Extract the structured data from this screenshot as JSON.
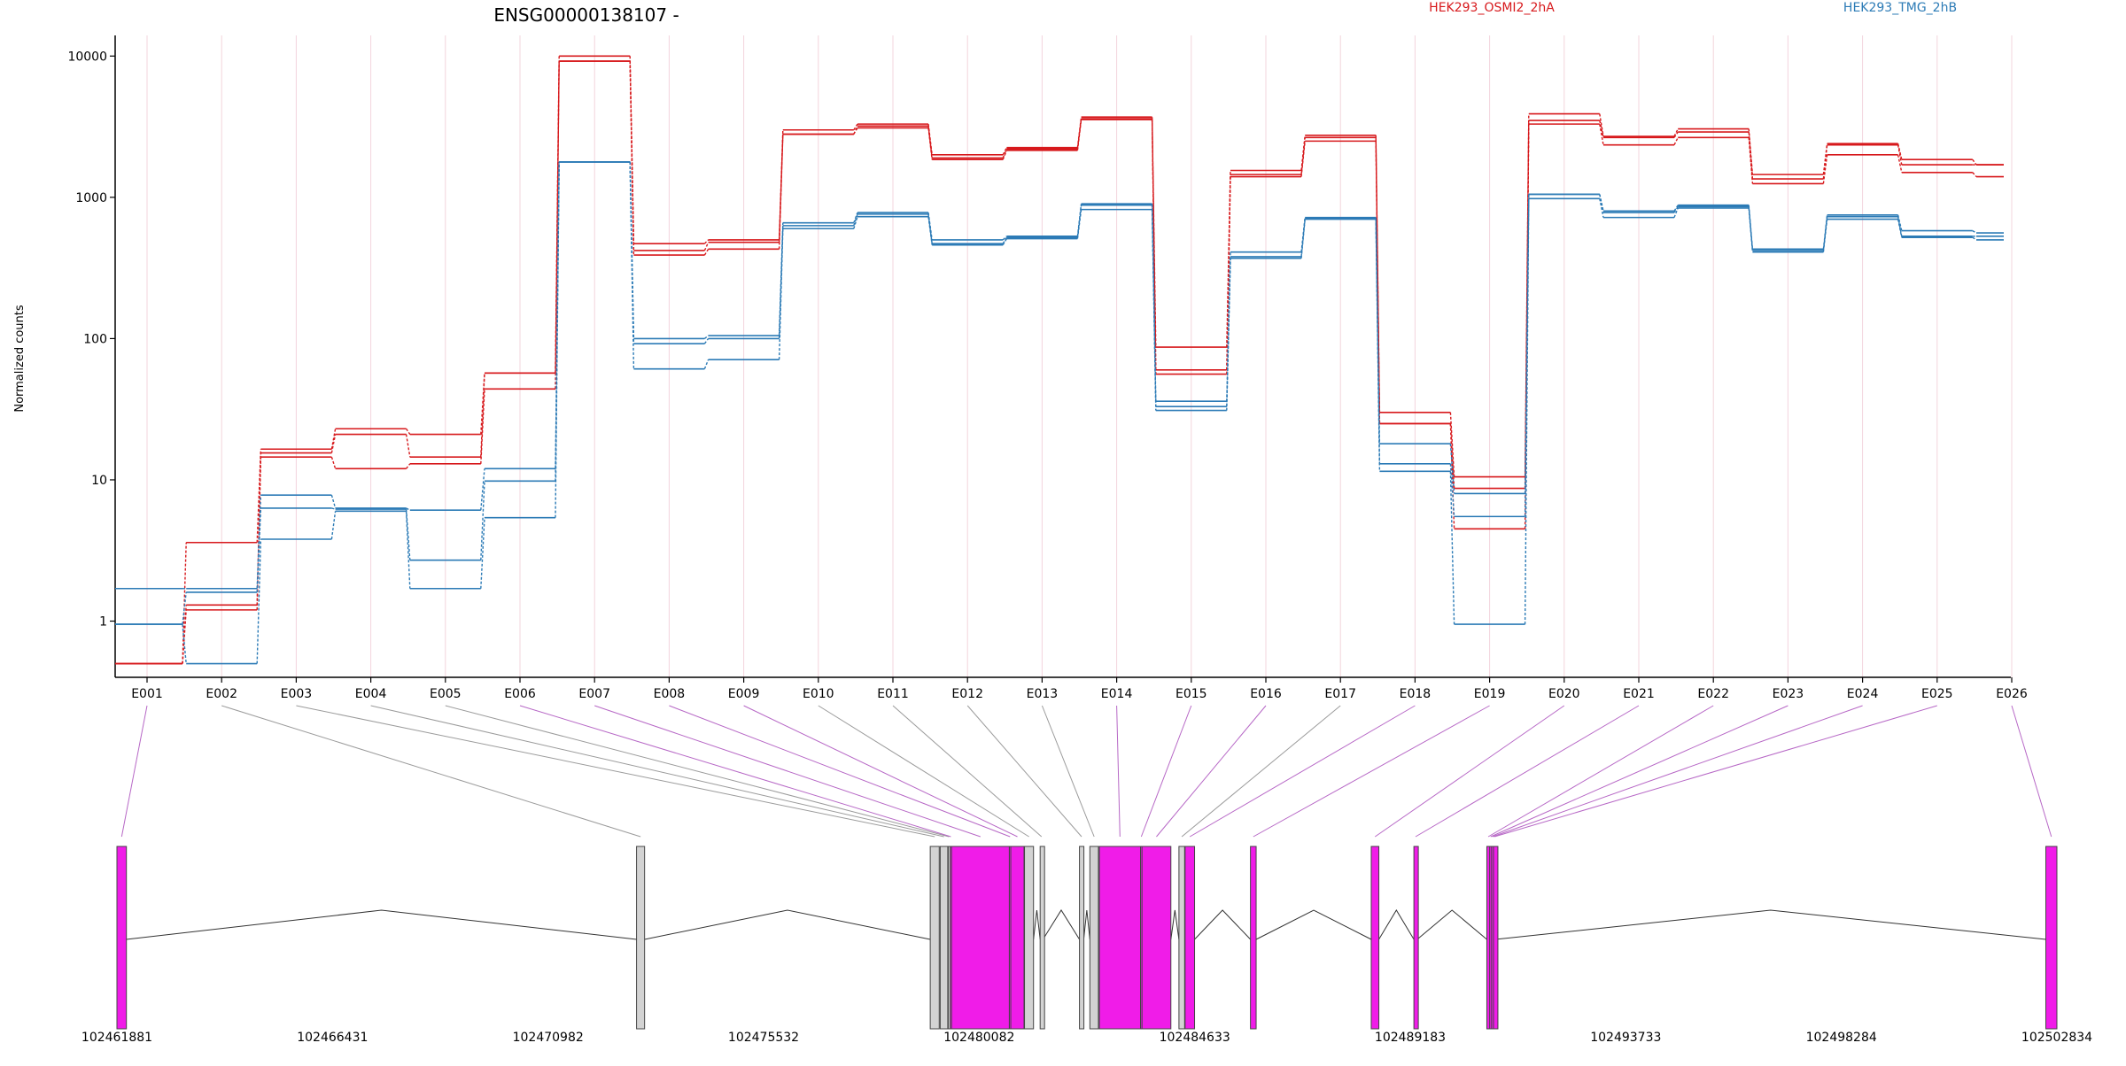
{
  "chart_data": [
    {
      "type": "line",
      "title": "ENSG00000138107 -",
      "ylabel": "Normalized counts",
      "yscale": "log",
      "ylim": [
        0.4,
        14000
      ],
      "yticks": [
        1,
        10,
        100,
        1000,
        10000
      ],
      "ytick_labels": [
        "1",
        "10",
        "100",
        "1000",
        "10000"
      ],
      "categories": [
        "E001",
        "E002",
        "E003",
        "E004",
        "E005",
        "E006",
        "E007",
        "E008",
        "E009",
        "E010",
        "E011",
        "E012",
        "E013",
        "E014",
        "E015",
        "E016",
        "E017",
        "E018",
        "E019",
        "E020",
        "E021",
        "E022",
        "E023",
        "E024",
        "E025",
        "E026"
      ],
      "legend": {
        "placement": "top",
        "entries": [
          "HEK293_OSMI2_2hA",
          "HEK293_TMG_2hB"
        ]
      },
      "colors": {
        "HEK293_OSMI2_2hA": "#d7191c",
        "HEK293_TMG_2hB": "#2c7bb6",
        "grid": "#f3d4dc"
      },
      "grid": true,
      "series": [
        {
          "group": "HEK293_OSMI2_2hA",
          "values": [
            0.5,
            3.6,
            16.5,
            23,
            21,
            57,
            10000,
            470,
            500,
            3000,
            3300,
            2000,
            2250,
            3700,
            87,
            1550,
            2750,
            30,
            10.5,
            3900,
            2700,
            3050,
            1450,
            2400,
            1850,
            1700
          ]
        },
        {
          "group": "HEK293_OSMI2_2hA",
          "values": [
            0.5,
            1.3,
            15.5,
            21,
            14.5,
            57,
            9200,
            420,
            480,
            2800,
            3200,
            1900,
            2200,
            3600,
            60,
            1450,
            2650,
            25,
            8.7,
            3500,
            2650,
            2900,
            1350,
            2350,
            1700,
            1700
          ]
        },
        {
          "group": "HEK293_OSMI2_2hA",
          "values": [
            0.5,
            1.2,
            14.5,
            12,
            13,
            44,
            9200,
            390,
            430,
            2800,
            3100,
            1850,
            2150,
            3550,
            56,
            1400,
            2500,
            25,
            4.5,
            3300,
            2350,
            2650,
            1250,
            2000,
            1500,
            1400
          ]
        },
        {
          "group": "HEK293_TMG_2hB",
          "values": [
            1.7,
            1.7,
            7.8,
            6.3,
            6.1,
            12,
            1780,
            100,
            105,
            660,
            780,
            500,
            530,
            900,
            36,
            410,
            720,
            18,
            8,
            1050,
            800,
            880,
            430,
            750,
            580,
            560
          ]
        },
        {
          "group": "HEK293_TMG_2hB",
          "values": [
            0.95,
            1.6,
            6.3,
            6.2,
            2.7,
            9.8,
            1780,
            92,
            100,
            630,
            760,
            470,
            520,
            880,
            33,
            380,
            710,
            13,
            5.5,
            1050,
            780,
            860,
            420,
            730,
            530,
            530
          ]
        },
        {
          "group": "HEK293_TMG_2hB",
          "values": [
            0.95,
            0.5,
            3.8,
            6,
            1.7,
            5.4,
            1780,
            61,
            71,
            600,
            730,
            460,
            510,
            820,
            31,
            370,
            700,
            11.5,
            0.95,
            980,
            720,
            840,
            410,
            700,
            520,
            500
          ]
        }
      ]
    },
    {
      "type": "gene-model",
      "coordinate_ticks": [
        "102461881",
        "102466431",
        "102470982",
        "102475532",
        "102480082",
        "102484633",
        "102489183",
        "102493733",
        "102498284",
        "102502834"
      ],
      "coordinate_range": [
        102461881,
        102502834
      ],
      "colors": {
        "tested": "#f01ce8",
        "untested": "#d3d3d3",
        "outline": "#444444",
        "connector_tested": "#b768c6",
        "connector_untested": "#9b9b9b"
      },
      "exons": [
        {
          "id": "E001",
          "start": 102461881,
          "end": 102462081,
          "tested": true
        },
        {
          "id": "E002",
          "start": 102472850,
          "end": 102473020,
          "tested": false
        },
        {
          "id": "E003",
          "start": 102479050,
          "end": 102479240,
          "tested": false
        },
        {
          "id": "E004",
          "start": 102479260,
          "end": 102479420,
          "tested": false
        },
        {
          "id": "E005",
          "start": 102479430,
          "end": 102479460,
          "tested": false
        },
        {
          "id": "E006",
          "start": 102479470,
          "end": 102479500,
          "tested": true
        },
        {
          "id": "E007",
          "start": 102479500,
          "end": 102480720,
          "tested": true
        },
        {
          "id": "E008",
          "start": 102480720,
          "end": 102480750,
          "tested": true
        },
        {
          "id": "E009",
          "start": 102480750,
          "end": 102481030,
          "tested": true
        },
        {
          "id": "E010",
          "start": 102481040,
          "end": 102481230,
          "tested": false
        },
        {
          "id": "E011",
          "start": 102481370,
          "end": 102481430,
          "tested": false
        },
        {
          "id": "E012",
          "start": 102482200,
          "end": 102482290,
          "tested": false
        },
        {
          "id": "E013",
          "start": 102482420,
          "end": 102482600,
          "tested": false
        },
        {
          "id": "E014",
          "start": 102482620,
          "end": 102483490,
          "tested": true
        },
        {
          "id": "E015",
          "start": 102483490,
          "end": 102483520,
          "tested": true
        },
        {
          "id": "E016",
          "start": 102483520,
          "end": 102484130,
          "tested": true
        },
        {
          "id": "E017",
          "start": 102484300,
          "end": 102484420,
          "tested": false
        },
        {
          "id": "E018",
          "start": 102484430,
          "end": 102484630,
          "tested": true
        },
        {
          "id": "E019",
          "start": 102485810,
          "end": 102485930,
          "tested": true
        },
        {
          "id": "E020",
          "start": 102488360,
          "end": 102488520,
          "tested": true
        },
        {
          "id": "E021",
          "start": 102489260,
          "end": 102489330,
          "tested": true
        },
        {
          "id": "E022",
          "start": 102490800,
          "end": 102490860,
          "tested": true
        },
        {
          "id": "E023",
          "start": 102490860,
          "end": 102490900,
          "tested": true
        },
        {
          "id": "E024",
          "start": 102490900,
          "end": 102490940,
          "tested": true
        },
        {
          "id": "E025",
          "start": 102490940,
          "end": 102490980,
          "tested": true
        },
        {
          "id": "E026",
          "start": 102502600,
          "end": 102502834,
          "tested": true
        }
      ]
    }
  ]
}
